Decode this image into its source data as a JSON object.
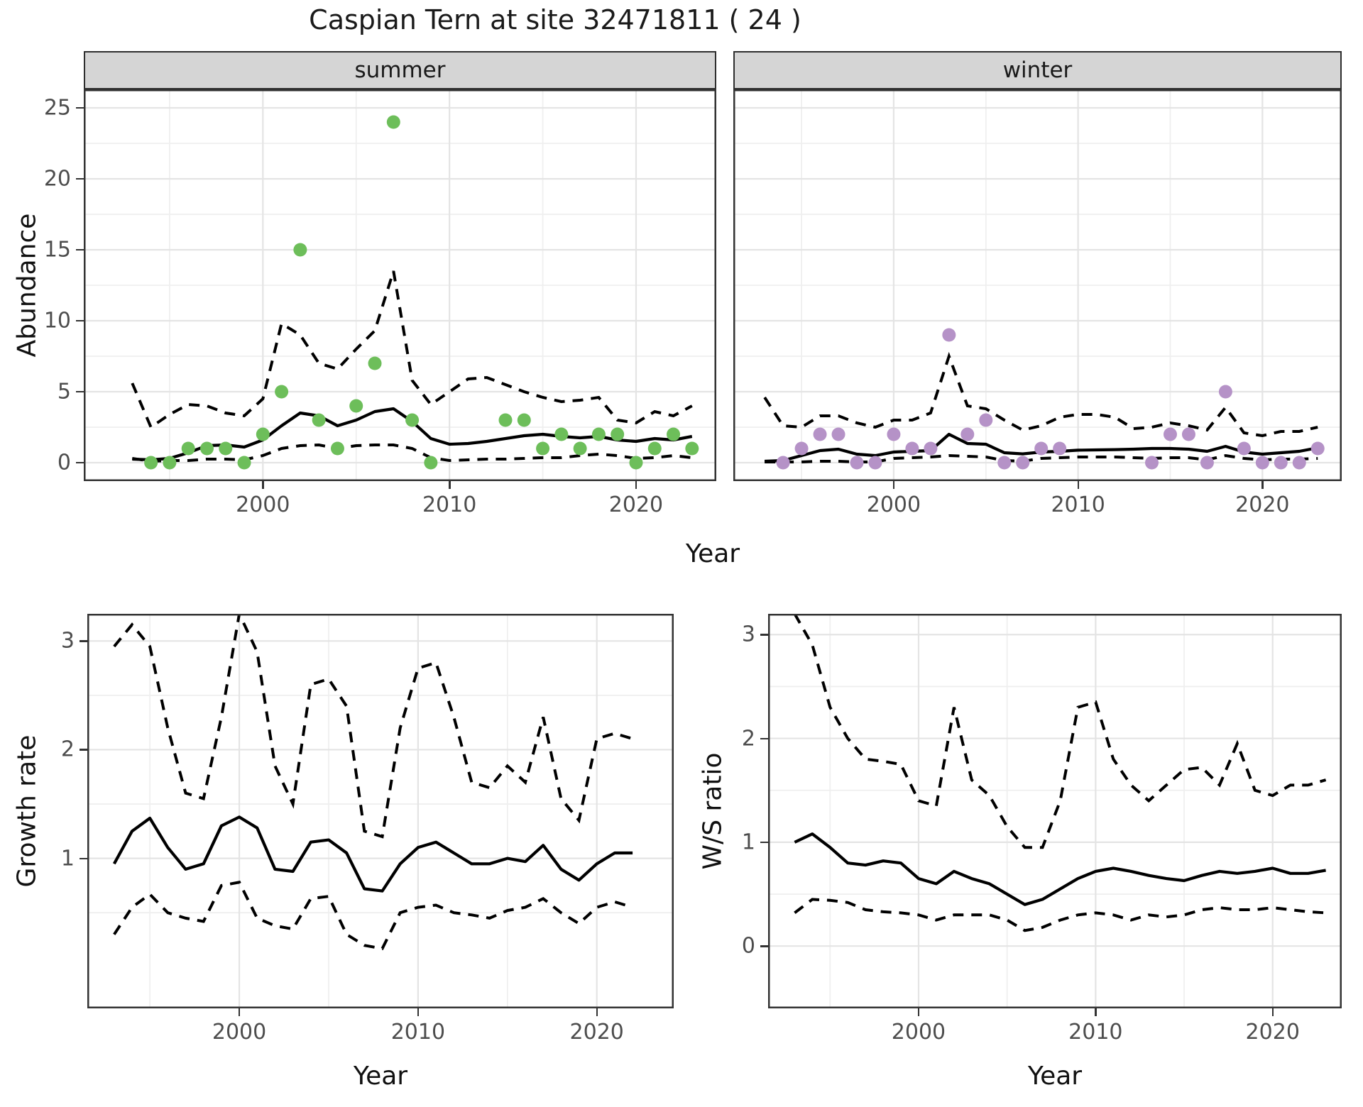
{
  "title": "Caspian Tern at site 32471811 ( 24 )",
  "axes": {
    "abundance": "Abundance",
    "year": "Year",
    "growth": "Growth rate",
    "ws": "W/S ratio"
  },
  "colors": {
    "summer_points": "#6dbe5a",
    "winter_points": "#b592c7",
    "mean_line": "#000000",
    "ci_line": "#000000",
    "panel_border": "#333333",
    "grid_major": "#e4e4e4",
    "grid_minor": "#efefef",
    "strip_bg": "#d5d5d5",
    "tick_label": "#4d4d4d"
  },
  "chart_data": [
    {
      "id": "abundance-summer",
      "type": "line",
      "strip": "summer",
      "xlabel": "Year",
      "ylabel": "Abundance",
      "x_range": [
        1990.4,
        2024.3
      ],
      "y_range": [
        -1.3,
        26.3
      ],
      "x_ticks": [
        2000,
        2010,
        2020
      ],
      "x_minor": [
        1995,
        2005,
        2015
      ],
      "y_ticks": [
        0,
        5,
        10,
        15,
        20,
        25
      ],
      "y_minor": [
        2.5,
        7.5,
        12.5,
        17.5,
        22.5
      ],
      "show_y_labels": true,
      "years": [
        1993,
        1994,
        1995,
        1996,
        1997,
        1998,
        1999,
        2000,
        2001,
        2002,
        2003,
        2004,
        2005,
        2006,
        2007,
        2008,
        2009,
        2010,
        2011,
        2012,
        2013,
        2014,
        2015,
        2016,
        2017,
        2018,
        2019,
        2020,
        2021,
        2022,
        2023
      ],
      "mean": [
        0.25,
        0.2,
        0.3,
        0.7,
        1.2,
        1.25,
        1.1,
        1.6,
        2.6,
        3.5,
        3.3,
        2.6,
        3.0,
        3.6,
        3.8,
        2.9,
        1.7,
        1.3,
        1.35,
        1.5,
        1.7,
        1.9,
        2.0,
        1.85,
        1.75,
        1.85,
        1.6,
        1.5,
        1.7,
        1.6,
        1.85
      ],
      "upper": [
        5.6,
        2.5,
        3.4,
        4.1,
        4.0,
        3.5,
        3.3,
        4.5,
        9.8,
        9.0,
        7.0,
        6.6,
        8.0,
        9.3,
        13.5,
        5.8,
        4.1,
        5.0,
        5.9,
        6.0,
        5.5,
        5.0,
        4.6,
        4.3,
        4.4,
        4.6,
        3.0,
        2.8,
        3.6,
        3.3,
        4.0
      ],
      "lower": [
        0.3,
        0.1,
        0.15,
        0.15,
        0.25,
        0.25,
        0.2,
        0.5,
        1.0,
        1.2,
        1.25,
        1.0,
        1.2,
        1.25,
        1.25,
        1.0,
        0.35,
        0.15,
        0.2,
        0.25,
        0.25,
        0.3,
        0.35,
        0.35,
        0.5,
        0.6,
        0.5,
        0.3,
        0.35,
        0.5,
        0.35
      ],
      "points": {
        "color": "#6dbe5a",
        "data": [
          [
            1994,
            0
          ],
          [
            1995,
            0
          ],
          [
            1996,
            1
          ],
          [
            1997,
            1
          ],
          [
            1998,
            1
          ],
          [
            1999,
            0
          ],
          [
            2000,
            2
          ],
          [
            2001,
            5
          ],
          [
            2002,
            15
          ],
          [
            2003,
            3
          ],
          [
            2004,
            1
          ],
          [
            2005,
            4
          ],
          [
            2006,
            7
          ],
          [
            2007,
            24
          ],
          [
            2008,
            3
          ],
          [
            2009,
            0
          ],
          [
            2013,
            3
          ],
          [
            2014,
            3
          ],
          [
            2015,
            1
          ],
          [
            2016,
            2
          ],
          [
            2017,
            1
          ],
          [
            2018,
            2
          ],
          [
            2019,
            2
          ],
          [
            2020,
            0
          ],
          [
            2021,
            1
          ],
          [
            2022,
            2
          ],
          [
            2023,
            1
          ]
        ]
      }
    },
    {
      "id": "abundance-winter",
      "type": "line",
      "strip": "winter",
      "xlabel": "Year",
      "ylabel": "Abundance",
      "x_range": [
        1991.3,
        2024.3
      ],
      "y_range": [
        -1.3,
        26.3
      ],
      "x_ticks": [
        2000,
        2010,
        2020
      ],
      "x_minor": [
        1995,
        2005,
        2015
      ],
      "y_ticks": [
        0,
        5,
        10,
        15,
        20,
        25
      ],
      "y_minor": [
        2.5,
        7.5,
        12.5,
        17.5,
        22.5
      ],
      "show_y_labels": false,
      "years": [
        1993,
        1994,
        1995,
        1996,
        1997,
        1998,
        1999,
        2000,
        2001,
        2002,
        2003,
        2004,
        2005,
        2006,
        2007,
        2008,
        2009,
        2010,
        2011,
        2012,
        2013,
        2014,
        2015,
        2016,
        2017,
        2018,
        2019,
        2020,
        2021,
        2022,
        2023
      ],
      "mean": [
        0.1,
        0.15,
        0.5,
        0.85,
        0.95,
        0.6,
        0.5,
        0.75,
        0.8,
        0.85,
        2.0,
        1.35,
        1.3,
        0.7,
        0.62,
        0.75,
        0.8,
        0.88,
        0.9,
        0.92,
        0.95,
        1.0,
        1.0,
        0.95,
        0.8,
        1.15,
        0.75,
        0.6,
        0.7,
        0.8,
        1.05
      ],
      "upper": [
        4.6,
        2.6,
        2.5,
        3.3,
        3.3,
        2.8,
        2.5,
        3.0,
        3.0,
        3.5,
        7.5,
        4.0,
        3.8,
        3.0,
        2.3,
        2.6,
        3.2,
        3.4,
        3.4,
        3.2,
        2.4,
        2.5,
        2.8,
        2.6,
        2.3,
        3.9,
        2.1,
        1.9,
        2.2,
        2.2,
        2.5
      ],
      "lower": [
        0.05,
        0.05,
        0.05,
        0.1,
        0.1,
        0.05,
        0.05,
        0.3,
        0.35,
        0.4,
        0.5,
        0.45,
        0.4,
        0.15,
        0.1,
        0.3,
        0.35,
        0.4,
        0.4,
        0.4,
        0.35,
        0.3,
        0.35,
        0.35,
        0.2,
        0.5,
        0.3,
        0.2,
        0.25,
        0.25,
        0.3
      ],
      "points": {
        "color": "#b592c7",
        "data": [
          [
            1994,
            0
          ],
          [
            1995,
            1
          ],
          [
            1996,
            2
          ],
          [
            1997,
            2
          ],
          [
            1998,
            0
          ],
          [
            1999,
            0
          ],
          [
            2000,
            2
          ],
          [
            2001,
            1
          ],
          [
            2002,
            1
          ],
          [
            2003,
            9
          ],
          [
            2004,
            2
          ],
          [
            2005,
            3
          ],
          [
            2006,
            0
          ],
          [
            2007,
            0
          ],
          [
            2008,
            1
          ],
          [
            2009,
            1
          ],
          [
            2014,
            0
          ],
          [
            2015,
            2
          ],
          [
            2016,
            2
          ],
          [
            2017,
            0
          ],
          [
            2018,
            5
          ],
          [
            2019,
            1
          ],
          [
            2020,
            0
          ],
          [
            2021,
            0
          ],
          [
            2022,
            0
          ],
          [
            2023,
            1
          ]
        ]
      }
    },
    {
      "id": "growth-rate",
      "type": "line",
      "strip": "",
      "xlabel": "Year",
      "ylabel": "Growth rate",
      "x_range": [
        1991.5,
        2024.3
      ],
      "y_range": [
        -0.38,
        3.25
      ],
      "x_ticks": [
        2000,
        2010,
        2020
      ],
      "x_minor": [
        1995,
        2005,
        2015
      ],
      "y_ticks": [
        1,
        2,
        3
      ],
      "y_minor": [
        0.5,
        1.5,
        2.5
      ],
      "show_y_labels": true,
      "years": [
        1993,
        1994,
        1995,
        1996,
        1997,
        1998,
        1999,
        2000,
        2001,
        2002,
        2003,
        2004,
        2005,
        2006,
        2007,
        2008,
        2009,
        2010,
        2011,
        2012,
        2013,
        2014,
        2015,
        2016,
        2017,
        2018,
        2019,
        2020,
        2021,
        2022
      ],
      "mean": [
        0.95,
        1.25,
        1.37,
        1.1,
        0.9,
        0.95,
        1.3,
        1.38,
        1.28,
        0.9,
        0.88,
        1.15,
        1.17,
        1.05,
        0.72,
        0.7,
        0.95,
        1.1,
        1.15,
        1.05,
        0.95,
        0.95,
        1.0,
        0.97,
        1.12,
        0.9,
        0.8,
        0.95,
        1.05,
        1.05
      ],
      "upper": [
        2.95,
        3.15,
        2.95,
        2.2,
        1.6,
        1.55,
        2.3,
        3.25,
        2.9,
        1.85,
        1.5,
        2.6,
        2.65,
        2.4,
        1.25,
        1.2,
        2.2,
        2.75,
        2.8,
        2.3,
        1.7,
        1.65,
        1.85,
        1.7,
        2.3,
        1.55,
        1.35,
        2.1,
        2.15,
        2.1
      ],
      "lower": [
        0.3,
        0.55,
        0.67,
        0.5,
        0.45,
        0.42,
        0.75,
        0.78,
        0.45,
        0.38,
        0.35,
        0.63,
        0.65,
        0.3,
        0.2,
        0.17,
        0.5,
        0.55,
        0.57,
        0.5,
        0.48,
        0.45,
        0.52,
        0.55,
        0.63,
        0.5,
        0.4,
        0.55,
        0.6,
        0.55
      ],
      "points": null
    },
    {
      "id": "ws-ratio",
      "type": "line",
      "strip": "",
      "xlabel": "Year",
      "ylabel": "W/S ratio",
      "x_range": [
        1991.5,
        2023.9
      ],
      "y_range": [
        -0.6,
        3.2
      ],
      "x_ticks": [
        2000,
        2010,
        2020
      ],
      "x_minor": [
        1995,
        2005,
        2015
      ],
      "y_ticks": [
        0,
        1,
        2,
        3
      ],
      "y_minor": [
        0.5,
        1.5,
        2.5
      ],
      "show_y_labels": true,
      "years": [
        1993,
        1994,
        1995,
        1996,
        1997,
        1998,
        1999,
        2000,
        2001,
        2002,
        2003,
        2004,
        2005,
        2006,
        2007,
        2008,
        2009,
        2010,
        2011,
        2012,
        2013,
        2014,
        2015,
        2016,
        2017,
        2018,
        2019,
        2020,
        2021,
        2022,
        2023
      ],
      "mean": [
        1.0,
        1.08,
        0.95,
        0.8,
        0.78,
        0.82,
        0.8,
        0.65,
        0.6,
        0.72,
        0.65,
        0.6,
        0.5,
        0.4,
        0.45,
        0.55,
        0.65,
        0.72,
        0.75,
        0.72,
        0.68,
        0.65,
        0.63,
        0.68,
        0.72,
        0.7,
        0.72,
        0.75,
        0.7,
        0.7,
        0.73
      ],
      "upper": [
        3.2,
        2.9,
        2.3,
        2.0,
        1.8,
        1.78,
        1.75,
        1.4,
        1.35,
        2.3,
        1.6,
        1.45,
        1.15,
        0.95,
        0.95,
        1.4,
        2.3,
        2.35,
        1.8,
        1.55,
        1.4,
        1.55,
        1.7,
        1.72,
        1.55,
        1.95,
        1.5,
        1.45,
        1.55,
        1.55,
        1.6
      ],
      "lower": [
        0.32,
        0.45,
        0.44,
        0.42,
        0.35,
        0.33,
        0.32,
        0.3,
        0.25,
        0.3,
        0.3,
        0.3,
        0.25,
        0.15,
        0.18,
        0.25,
        0.3,
        0.32,
        0.3,
        0.25,
        0.3,
        0.28,
        0.3,
        0.35,
        0.37,
        0.35,
        0.35,
        0.37,
        0.35,
        0.33,
        0.32
      ],
      "points": null
    }
  ]
}
